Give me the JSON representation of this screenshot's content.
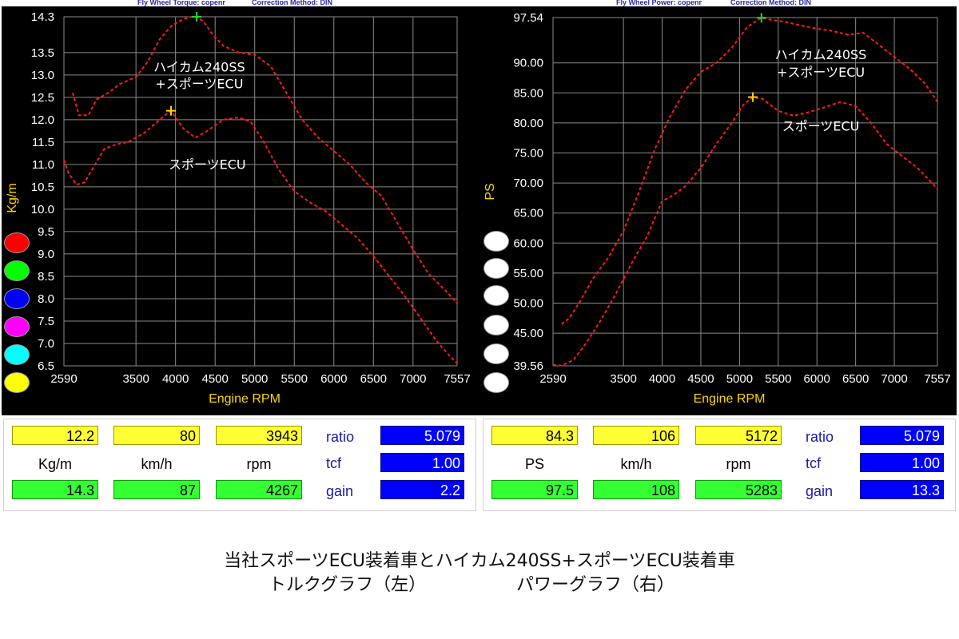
{
  "headers": {
    "left_title": "Fly Wheel Torque: copenr",
    "left_method": "Correction Method: DIN",
    "right_title": "Fly Wheel Power: copenr",
    "right_method": "Correction Method: DIN"
  },
  "legend_colors": [
    "#ff0000",
    "#00ff00",
    "#0000ff",
    "#ff00ff",
    "#00ffff",
    "#ffff00"
  ],
  "chart_data": [
    {
      "type": "line",
      "ylabel": "Kg/m",
      "xlabel": "Engine RPM",
      "xlim": [
        2590,
        7557
      ],
      "ylim": [
        6.5,
        14.3
      ],
      "y_ticks": [
        "14.3",
        "13.5",
        "13.0",
        "12.5",
        "12.0",
        "11.5",
        "11.0",
        "10.5",
        "10.0",
        "9.5",
        "9.0",
        "8.5",
        "8.0",
        "7.5",
        "7.0",
        "6.5"
      ],
      "y_tick_values": [
        14.3,
        13.5,
        13.0,
        12.5,
        12.0,
        11.5,
        11.0,
        10.5,
        10.0,
        9.5,
        9.0,
        8.5,
        8.0,
        7.5,
        7.0,
        6.5
      ],
      "x_ticks": [
        "2590",
        "3500",
        "4000",
        "4500",
        "5000",
        "5500",
        "6000",
        "6500",
        "7000",
        "7557"
      ],
      "x_tick_values": [
        2590,
        3500,
        4000,
        4500,
        5000,
        5500,
        6000,
        6500,
        7000,
        7557
      ],
      "grid": true,
      "series": [
        {
          "name": "ハイカム240SS\n+スポーツECU",
          "color": "#ff1a1a",
          "x": [
            2700,
            2780,
            2900,
            3000,
            3150,
            3300,
            3500,
            3650,
            3800,
            3950,
            4100,
            4200,
            4267,
            4350,
            4450,
            4600,
            4800,
            5000,
            5200,
            5400,
            5600,
            5800,
            6000,
            6200,
            6400,
            6600,
            6800,
            7000,
            7200,
            7400,
            7557
          ],
          "y": [
            12.6,
            12.1,
            12.1,
            12.45,
            12.6,
            12.8,
            12.95,
            13.3,
            13.8,
            14.1,
            14.25,
            14.3,
            14.3,
            14.2,
            13.95,
            13.65,
            13.5,
            13.45,
            13.2,
            12.6,
            12.0,
            11.6,
            11.3,
            11.0,
            10.6,
            10.3,
            9.7,
            9.1,
            8.55,
            8.2,
            7.9
          ]
        },
        {
          "name": "スポーツECU",
          "color": "#ff1a1a",
          "x": [
            2590,
            2650,
            2750,
            2850,
            2950,
            3100,
            3250,
            3400,
            3600,
            3800,
            3900,
            3943,
            4000,
            4100,
            4250,
            4400,
            4600,
            4800,
            4950,
            5100,
            5300,
            5500,
            5700,
            5900,
            6100,
            6300,
            6500,
            6700,
            6900,
            7100,
            7300,
            7450,
            7557
          ],
          "y": [
            11.1,
            10.8,
            10.55,
            10.6,
            10.9,
            11.35,
            11.45,
            11.5,
            11.7,
            12.0,
            12.15,
            12.2,
            12.05,
            11.8,
            11.6,
            11.75,
            12.0,
            12.05,
            11.95,
            11.55,
            10.9,
            10.4,
            10.15,
            9.95,
            9.65,
            9.35,
            8.95,
            8.5,
            8.05,
            7.55,
            7.05,
            6.75,
            6.55
          ]
        }
      ],
      "annotations": [
        {
          "text": "ハイカム240SS",
          "at": [
            4300,
            13.08
          ]
        },
        {
          "text": "+スポーツECU",
          "at": [
            4300,
            12.7
          ]
        },
        {
          "text": "スポーツECU",
          "at": [
            4400,
            10.9
          ]
        }
      ]
    },
    {
      "type": "line",
      "ylabel": "PS",
      "xlabel": "Engine RPM",
      "xlim": [
        2590,
        7557
      ],
      "ylim": [
        39.56,
        97.54
      ],
      "y_ticks": [
        "97.54",
        "90.00",
        "85.00",
        "80.00",
        "75.00",
        "70.00",
        "65.00",
        "60.00",
        "55.00",
        "50.00",
        "45.00",
        "39.56"
      ],
      "y_tick_values": [
        97.54,
        90.0,
        85.0,
        80.0,
        75.0,
        70.0,
        65.0,
        60.0,
        55.0,
        50.0,
        45.0,
        39.56
      ],
      "x_ticks": [
        "2590",
        "3500",
        "4000",
        "4500",
        "5000",
        "5500",
        "6000",
        "6500",
        "7000",
        "7557"
      ],
      "x_tick_values": [
        2590,
        3500,
        4000,
        4500,
        5000,
        5500,
        6000,
        6500,
        7000,
        7557
      ],
      "grid": true,
      "series": [
        {
          "name": "ハイカム240SS\n+スポーツECU",
          "color": "#ff1a1a",
          "x": [
            2700,
            2800,
            2950,
            3100,
            3300,
            3500,
            3700,
            3900,
            4100,
            4300,
            4500,
            4700,
            4900,
            5100,
            5283,
            5400,
            5600,
            5800,
            6000,
            6200,
            6400,
            6600,
            6800,
            7000,
            7200,
            7400,
            7557
          ],
          "y": [
            46.5,
            47.5,
            50.5,
            54.0,
            57.5,
            62.0,
            68.5,
            75.5,
            81.0,
            85.5,
            88.5,
            90.0,
            92.5,
            96.0,
            97.5,
            97.2,
            96.8,
            96.2,
            95.7,
            95.3,
            94.7,
            95.0,
            93.0,
            91.0,
            89.0,
            86.5,
            83.5
          ]
        },
        {
          "name": "スポーツECU",
          "color": "#ff1a1a",
          "x": [
            2590,
            2700,
            2850,
            3000,
            3200,
            3400,
            3600,
            3800,
            4000,
            4150,
            4300,
            4500,
            4700,
            4900,
            5050,
            5172,
            5300,
            5500,
            5700,
            5900,
            6100,
            6300,
            6500,
            6700,
            6900,
            7100,
            7300,
            7450,
            7557
          ],
          "y": [
            39.7,
            39.6,
            40.5,
            43.0,
            47.0,
            51.5,
            56.5,
            61.0,
            67.0,
            68.0,
            69.5,
            72.5,
            76.5,
            80.0,
            83.0,
            84.3,
            84.0,
            82.0,
            81.2,
            81.8,
            82.6,
            83.5,
            82.8,
            80.0,
            76.5,
            74.5,
            72.5,
            70.5,
            69.0
          ]
        }
      ],
      "annotations": [
        {
          "text": "ハイカム240SS",
          "at": [
            6050,
            90.6
          ]
        },
        {
          "text": "+スポーツECU",
          "at": [
            6050,
            87.7
          ]
        },
        {
          "text": "スポーツECU",
          "at": [
            6050,
            78.7
          ]
        }
      ]
    }
  ],
  "left_panel": {
    "markers": [
      {
        "kind": "cross",
        "color": "#ffd400",
        "rpm": 3943,
        "value": 12.2
      },
      {
        "kind": "cross",
        "color": "#22dd22",
        "rpm": 4267,
        "value": 14.3
      }
    ]
  },
  "right_panel": {
    "markers": [
      {
        "kind": "cross",
        "color": "#ffd400",
        "rpm": 5172,
        "value": 84.3
      },
      {
        "kind": "cross",
        "color": "#22dd22",
        "rpm": 5283,
        "value": 97.5
      }
    ]
  },
  "readouts": {
    "left": {
      "yellow": [
        "12.2",
        "80",
        "3943"
      ],
      "units": [
        "Kg/m",
        "km/h",
        "rpm"
      ],
      "green": [
        "14.3",
        "87",
        "4267"
      ],
      "params": [
        "ratio",
        "tcf",
        "gain"
      ],
      "params_values": [
        "5.079",
        "1.00",
        "2.2"
      ]
    },
    "right": {
      "yellow": [
        "84.3",
        "106",
        "5172"
      ],
      "units": [
        "PS",
        "km/h",
        "rpm"
      ],
      "green": [
        "97.5",
        "108",
        "5283"
      ],
      "params": [
        "ratio",
        "tcf",
        "gain"
      ],
      "params_values": [
        "5.079",
        "1.00",
        "13.3"
      ]
    }
  },
  "caption": {
    "line1": "当社スポーツECU装着車とハイカム240SS+スポーツECU装着車",
    "line2_left": "トルクグラフ（左）",
    "line2_right": "パワーグラフ（右）"
  }
}
